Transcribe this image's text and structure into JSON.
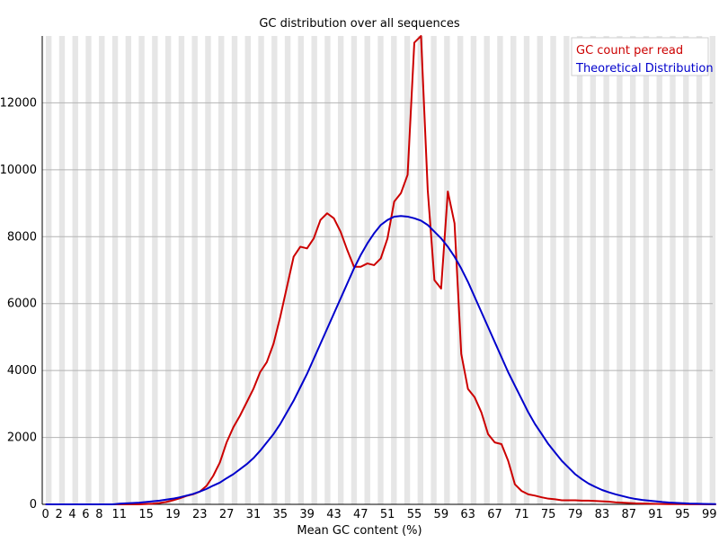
{
  "chart_data": {
    "type": "line",
    "title": "GC distribution over all sequences",
    "xlabel": "Mean GC content (%)",
    "ylabel": "",
    "xlim": [
      0,
      100
    ],
    "ylim": [
      0,
      14000
    ],
    "x_ticks": [
      "0",
      "2",
      "4",
      "6",
      "8",
      "11",
      "15",
      "19",
      "23",
      "27",
      "31",
      "35",
      "39",
      "43",
      "47",
      "51",
      "55",
      "59",
      "63",
      "67",
      "71",
      "75",
      "79",
      "83",
      "87",
      "91",
      "95",
      "99"
    ],
    "y_ticks": [
      0,
      2000,
      4000,
      6000,
      8000,
      10000,
      12000
    ],
    "legend_position": "top-right",
    "background": "alternating grey/white vertical bands",
    "series": [
      {
        "name": "GC count per read",
        "color": "#cc0000",
        "x": [
          0,
          1,
          2,
          3,
          4,
          5,
          6,
          7,
          8,
          9,
          10,
          11,
          12,
          13,
          14,
          15,
          16,
          17,
          18,
          19,
          20,
          21,
          22,
          23,
          24,
          25,
          26,
          27,
          28,
          29,
          30,
          31,
          32,
          33,
          34,
          35,
          36,
          37,
          38,
          39,
          40,
          41,
          42,
          43,
          44,
          45,
          46,
          47,
          48,
          49,
          50,
          51,
          52,
          53,
          54,
          55,
          56,
          57,
          58,
          59,
          60,
          61,
          62,
          63,
          64,
          65,
          66,
          67,
          68,
          69,
          70,
          71,
          72,
          73,
          74,
          75,
          76,
          77,
          78,
          79,
          80,
          81,
          82,
          83,
          84,
          85,
          86,
          87,
          88,
          89,
          90,
          91,
          92,
          93,
          94,
          95,
          96,
          97,
          98,
          99,
          100
        ],
        "values": [
          0,
          0,
          0,
          0,
          0,
          0,
          0,
          0,
          0,
          0,
          0,
          0,
          0,
          0,
          0,
          10,
          20,
          40,
          70,
          120,
          180,
          250,
          300,
          380,
          550,
          850,
          1250,
          1850,
          2300,
          2650,
          3050,
          3450,
          3950,
          4250,
          4800,
          5600,
          6500,
          7400,
          7700,
          7650,
          7950,
          8500,
          8700,
          8550,
          8150,
          7600,
          7100,
          7100,
          7200,
          7150,
          7350,
          7950,
          9050,
          9300,
          9850,
          13800,
          14000,
          9400,
          6700,
          6450,
          9350,
          8400,
          4500,
          3450,
          3200,
          2750,
          2100,
          1850,
          1800,
          1300,
          600,
          400,
          300,
          260,
          210,
          170,
          150,
          120,
          120,
          120,
          110,
          110,
          100,
          90,
          80,
          60,
          50,
          40,
          30,
          25,
          20,
          15,
          10,
          8,
          6,
          5,
          4,
          3,
          2,
          1,
          0
        ]
      },
      {
        "name": "Theoretical Distribution",
        "color": "#0000cc",
        "x": [
          0,
          1,
          2,
          3,
          4,
          5,
          6,
          7,
          8,
          9,
          10,
          11,
          12,
          13,
          14,
          15,
          16,
          17,
          18,
          19,
          20,
          21,
          22,
          23,
          24,
          25,
          26,
          27,
          28,
          29,
          30,
          31,
          32,
          33,
          34,
          35,
          36,
          37,
          38,
          39,
          40,
          41,
          42,
          43,
          44,
          45,
          46,
          47,
          48,
          49,
          50,
          51,
          52,
          53,
          54,
          55,
          56,
          57,
          58,
          59,
          60,
          61,
          62,
          63,
          64,
          65,
          66,
          67,
          68,
          69,
          70,
          71,
          72,
          73,
          74,
          75,
          76,
          77,
          78,
          79,
          80,
          81,
          82,
          83,
          84,
          85,
          86,
          87,
          88,
          89,
          90,
          91,
          92,
          93,
          94,
          95,
          96,
          97,
          98,
          99,
          100
        ],
        "values": [
          0,
          0,
          0,
          0,
          0,
          0,
          0,
          0,
          0,
          0,
          0,
          20,
          30,
          40,
          50,
          70,
          90,
          110,
          140,
          170,
          210,
          260,
          310,
          380,
          460,
          560,
          650,
          780,
          900,
          1050,
          1200,
          1380,
          1600,
          1850,
          2100,
          2400,
          2750,
          3100,
          3500,
          3900,
          4350,
          4800,
          5250,
          5700,
          6150,
          6600,
          7050,
          7450,
          7800,
          8100,
          8350,
          8500,
          8600,
          8620,
          8600,
          8550,
          8480,
          8350,
          8150,
          7950,
          7700,
          7400,
          7050,
          6650,
          6200,
          5750,
          5300,
          4850,
          4400,
          3950,
          3550,
          3150,
          2750,
          2400,
          2100,
          1800,
          1550,
          1300,
          1100,
          900,
          750,
          620,
          520,
          430,
          360,
          300,
          250,
          200,
          160,
          130,
          110,
          90,
          70,
          55,
          45,
          35,
          25,
          20,
          15,
          10,
          5
        ]
      }
    ]
  }
}
